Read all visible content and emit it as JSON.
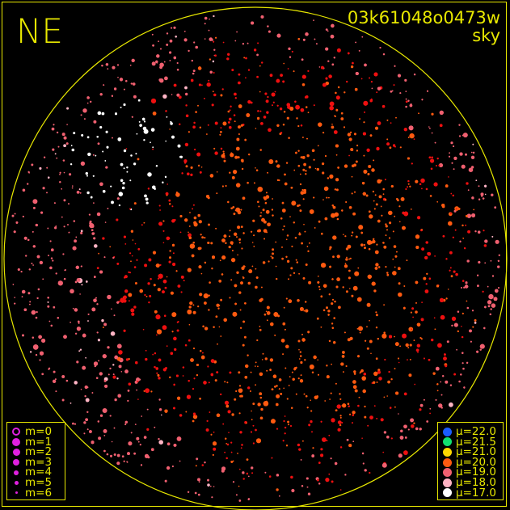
{
  "header": {
    "direction": "NE",
    "frame_id": "03k61048o0473w",
    "frame_type": "sky"
  },
  "chart_data": {
    "type": "scatter",
    "title": "",
    "description_labels": {
      "direction": "NE",
      "frame_id": "03k61048o0473w",
      "frame_type": "sky"
    },
    "magnitude_legend": [
      {
        "label": "m=0",
        "style": "ring"
      },
      {
        "label": "m=1",
        "style": "filled"
      },
      {
        "label": "m=2",
        "style": "filled"
      },
      {
        "label": "m=3",
        "style": "filled"
      },
      {
        "label": "m=4",
        "style": "filled"
      },
      {
        "label": "m=5",
        "style": "filled"
      },
      {
        "label": "m=6",
        "style": "filled"
      }
    ],
    "magnitude_legend_color": "#e020e0",
    "sky_brightness_legend": [
      {
        "label": "μ=22.0",
        "color": "#1a5cff"
      },
      {
        "label": "μ=21.5",
        "color": "#10e070"
      },
      {
        "label": "μ=21.0",
        "color": "#ffd800"
      },
      {
        "label": "μ=20.0",
        "color": "#ff5a10"
      },
      {
        "label": "μ=19.0",
        "color": "#f06070"
      },
      {
        "label": "μ=18.0",
        "color": "#ffb4c4"
      },
      {
        "label": "μ=17.0",
        "color": "#ffffff"
      }
    ],
    "accent_color": "#e8e800"
  }
}
